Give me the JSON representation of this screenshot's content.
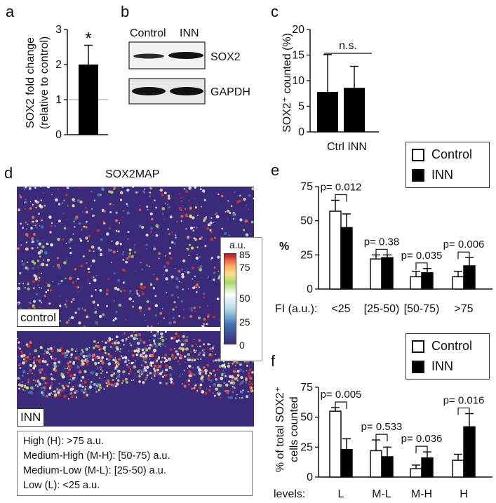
{
  "panels": {
    "a": {
      "label": "a",
      "ylabel_line1": "SOX2 fold change",
      "ylabel_line2": "(relative to control)",
      "star": "*"
    },
    "b": {
      "label": "b",
      "col1": "Control",
      "col2": "INN",
      "band1": "SOX2",
      "band2": "GAPDH"
    },
    "c": {
      "label": "c",
      "ylabel": "SOX2⁺ counted (%)",
      "ns": "n.s.",
      "xlabel": "Ctrl INN"
    },
    "d": {
      "label": "d",
      "title": "SOX2MAP",
      "img1": "control",
      "img2": "INN",
      "colorbar_unit": "a.u.",
      "colorbar_ticks": [
        "85",
        "75",
        "50",
        "25",
        "0"
      ],
      "definitions": [
        "High (H): >75 a.u.",
        "Medium-High (M-H):  [50-75) a.u.",
        "Medium-Low (M-L): [25-50) a.u.",
        "Low (L): <25 a.u."
      ]
    },
    "e": {
      "label": "e",
      "ylabel": "%",
      "xprefix": "FI (a.u.):"
    },
    "f": {
      "label": "f",
      "ylabel_line1": "% of total SOX2⁺",
      "ylabel_line2": "cells counted",
      "xprefix": "levels:"
    }
  },
  "legend": {
    "control": "Control",
    "inn": "INN"
  },
  "colors": {
    "control": "#ffffff",
    "inn": "#000000",
    "heat_bg": "#3b2a7a"
  },
  "chart_data": [
    {
      "id": "a",
      "type": "bar",
      "categories": [
        ""
      ],
      "values": [
        2.0
      ],
      "error": [
        0.55
      ],
      "ylim": [
        0,
        3
      ],
      "yticks": [
        "0",
        "1",
        "2",
        "3"
      ],
      "reference_line": 1
    },
    {
      "id": "c",
      "type": "bar",
      "categories": [
        "Ctrl",
        "INN"
      ],
      "values": [
        7.8,
        8.6
      ],
      "error": [
        7.3,
        4.2
      ],
      "ylim": [
        0,
        20
      ],
      "yticks": [
        "0",
        "5",
        "10",
        "15",
        "20"
      ]
    },
    {
      "id": "e",
      "type": "bar",
      "categories": [
        "<25",
        "[25-50)",
        "[50-75)",
        ">75"
      ],
      "ylim": [
        0,
        75
      ],
      "yticks": [
        "0",
        "25",
        "50",
        "75"
      ],
      "series": [
        {
          "name": "Control",
          "values": [
            57,
            22,
            9,
            9
          ],
          "error": [
            8,
            3,
            4,
            4
          ]
        },
        {
          "name": "INN",
          "values": [
            45,
            23,
            12,
            17
          ],
          "error": [
            10,
            2,
            3,
            6
          ]
        }
      ],
      "pvalues": [
        "p= 0.012",
        "p= 0.38",
        "p= 0.035",
        "p= 0.006"
      ]
    },
    {
      "id": "f",
      "type": "bar",
      "categories": [
        "L",
        "M-L",
        "M-H",
        "H"
      ],
      "ylim": [
        0,
        75
      ],
      "yticks": [
        "0",
        "25",
        "50",
        "75"
      ],
      "series": [
        {
          "name": "Control",
          "values": [
            55,
            22,
            7,
            14
          ],
          "error": [
            3,
            9,
            3,
            5
          ]
        },
        {
          "name": "INN",
          "values": [
            23,
            17,
            16,
            42
          ],
          "error": [
            9,
            8,
            5,
            11
          ]
        }
      ],
      "pvalues": [
        "p= 0.005",
        "p= 0.533",
        "p= 0.036",
        "p= 0.016"
      ]
    }
  ]
}
